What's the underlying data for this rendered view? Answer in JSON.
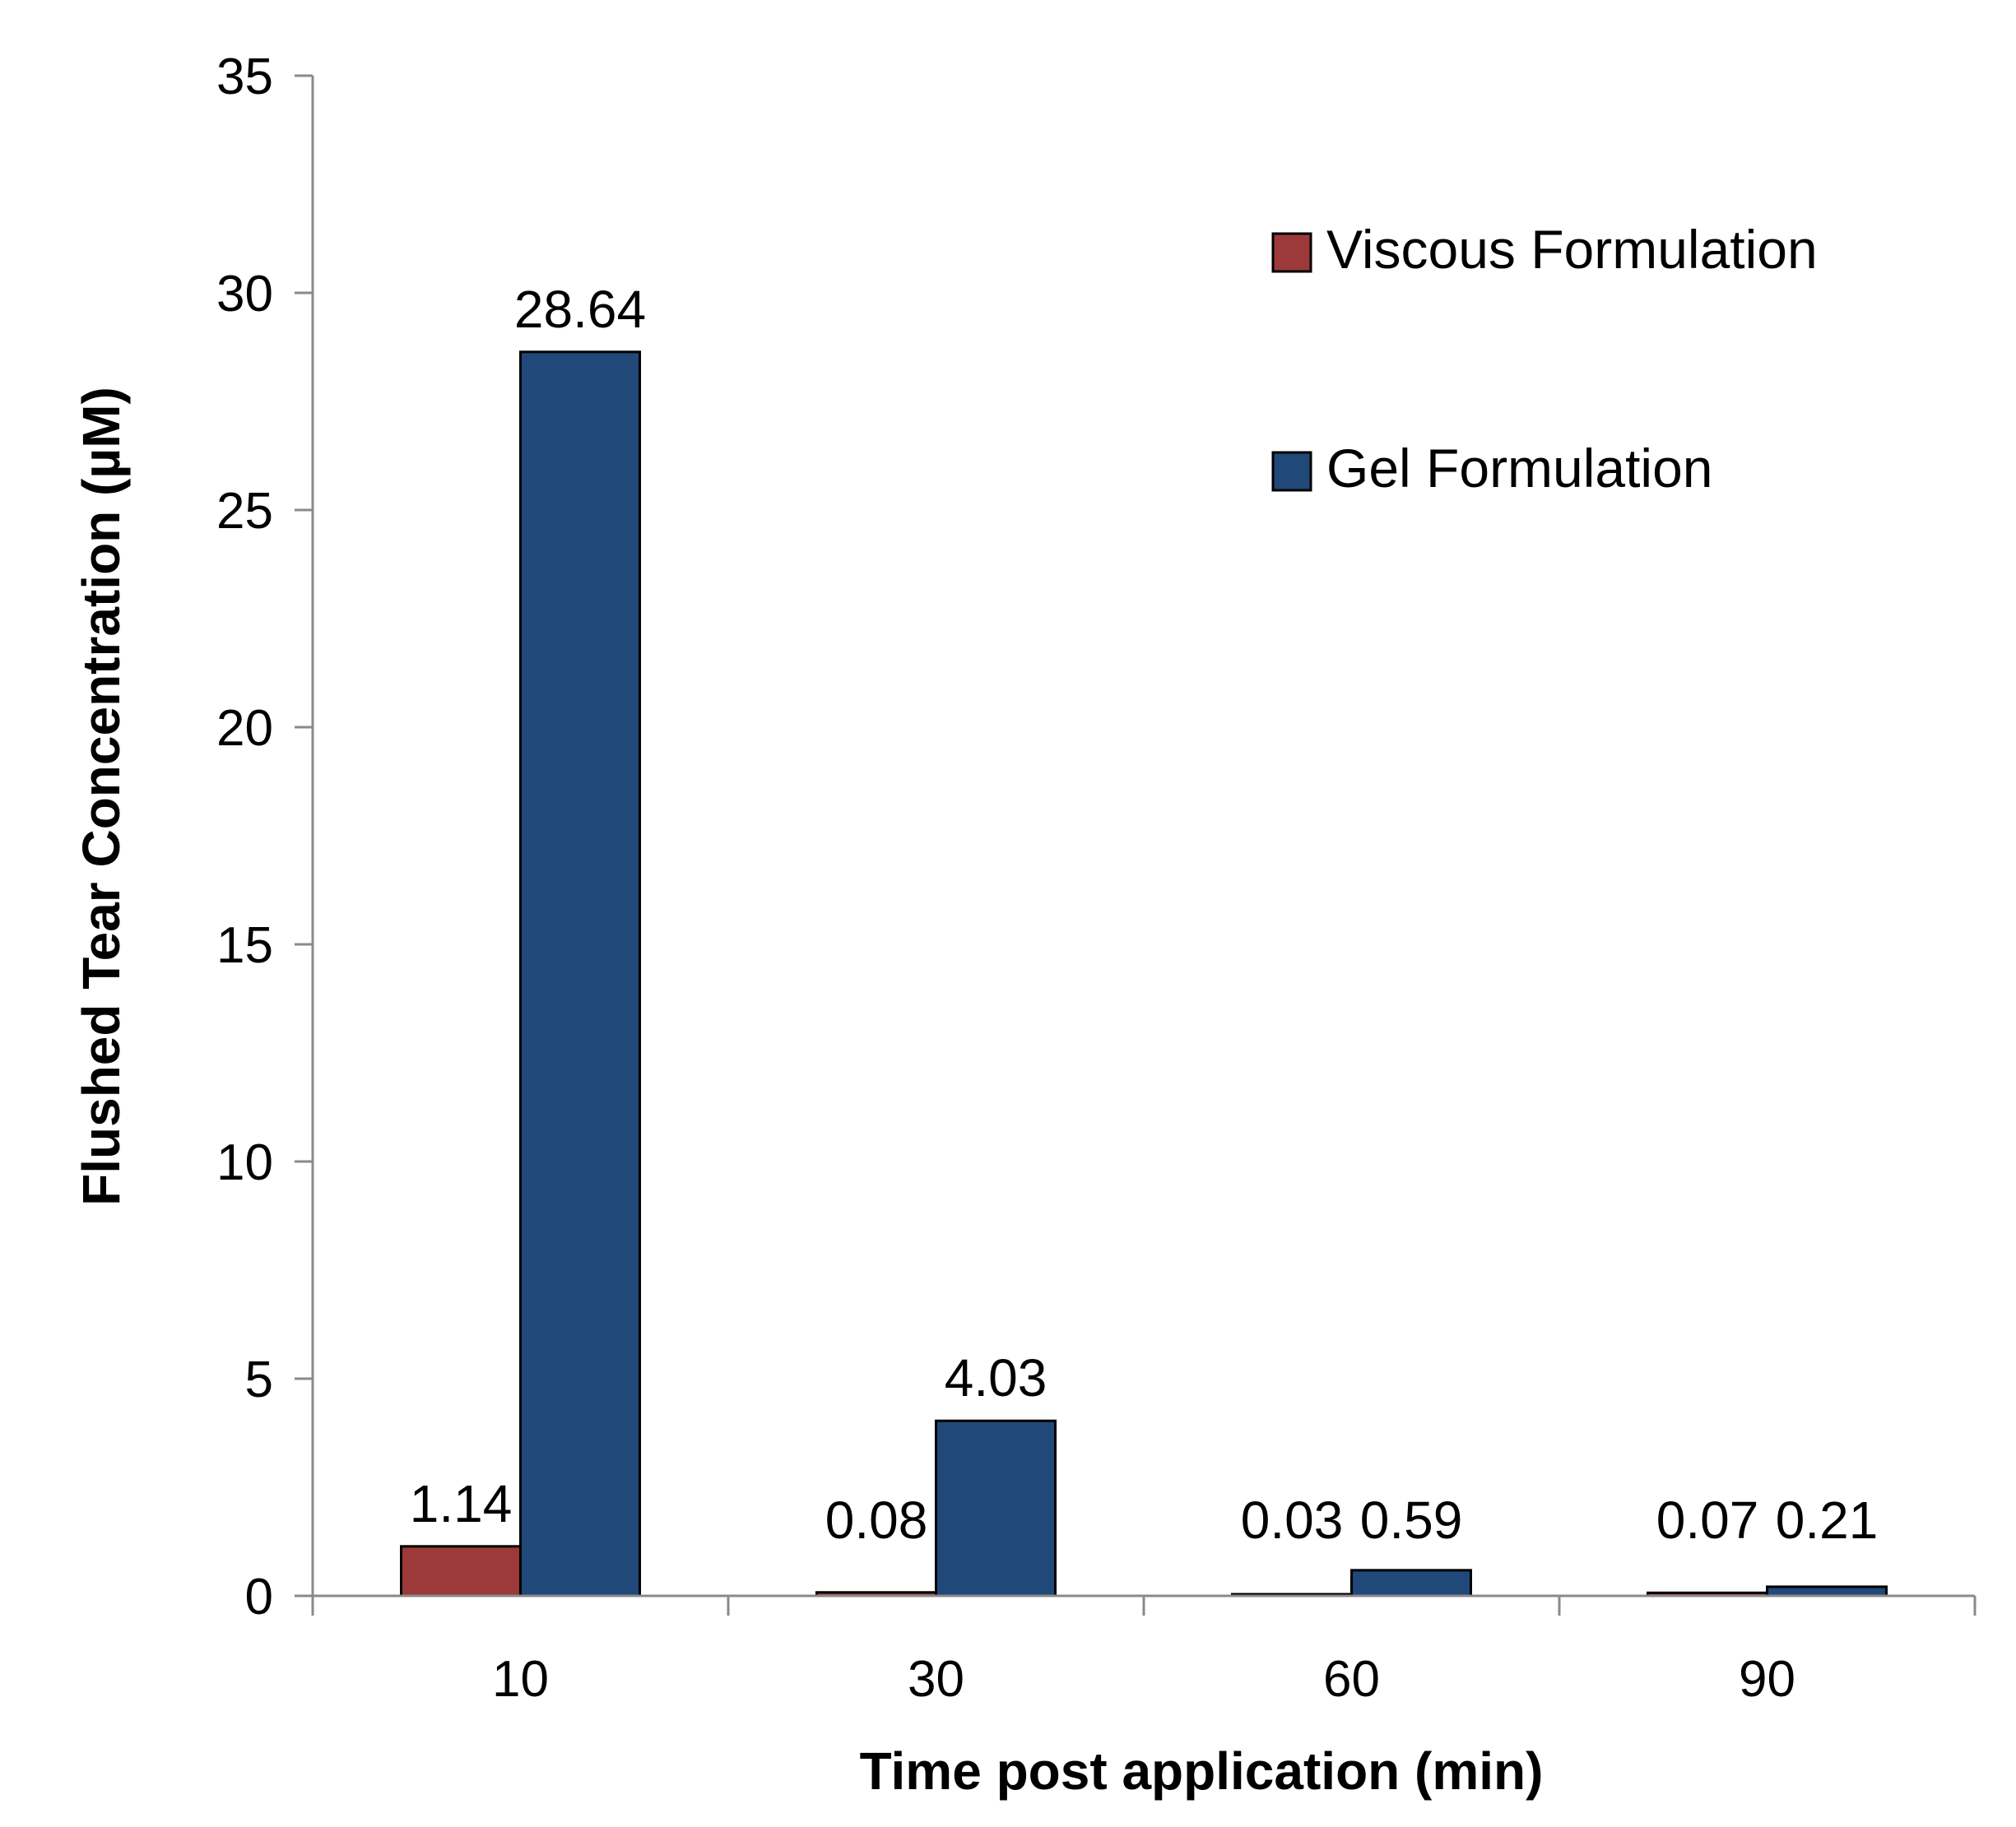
{
  "chart_data": {
    "type": "bar",
    "title": "",
    "xlabel": "Time post application (min)",
    "ylabel": "Flushed Tear Concentration (µM)",
    "categories": [
      "10",
      "30",
      "60",
      "90"
    ],
    "ylim": [
      0,
      35
    ],
    "yticks": [
      0,
      5,
      10,
      15,
      20,
      25,
      30,
      35
    ],
    "ytick_labels": [
      "0",
      "5",
      "10",
      "15",
      "20",
      "25",
      "30",
      "35"
    ],
    "grid": false,
    "legend_position": "top-right",
    "series": [
      {
        "name": "Viscous Formulation",
        "color": "#9b3a38",
        "values": [
          1.14,
          0.08,
          0.03,
          0.07
        ],
        "labels": [
          "1.14",
          "0.08",
          "0.03",
          "0.07"
        ]
      },
      {
        "name": "Gel Formulation",
        "color": "#204878",
        "values": [
          28.64,
          4.03,
          0.59,
          0.21
        ],
        "labels": [
          "28.64",
          "4.03",
          "0.59",
          "0.21"
        ]
      }
    ]
  }
}
